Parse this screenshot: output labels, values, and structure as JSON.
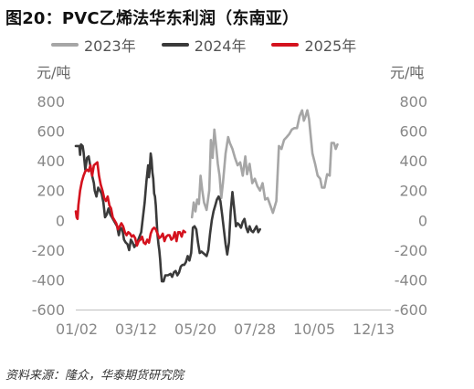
{
  "title": "图20：PVC乙烯法华东利润（东南亚）",
  "source": "资料来源：隆众，华泰期货研究院",
  "chart_data": {
    "type": "line",
    "ylabel_left": "元/吨",
    "ylabel_right": "元/吨",
    "ylim": [
      -600,
      800
    ],
    "yticks": [
      -600,
      -400,
      -200,
      0,
      200,
      400,
      600,
      800
    ],
    "x_ticks": [
      "01/02",
      "03/12",
      "05/20",
      "07/28",
      "10/05",
      "12/13"
    ],
    "grid": false,
    "legend_position": "top",
    "series": [
      {
        "name": "2023年",
        "color": "#a6a6a6",
        "points": [
          [
            136,
            20
          ],
          [
            138,
            120
          ],
          [
            140,
            60
          ],
          [
            142,
            140
          ],
          [
            144,
            110
          ],
          [
            146,
            300
          ],
          [
            148,
            200
          ],
          [
            150,
            120
          ],
          [
            153,
            70
          ],
          [
            156,
            200
          ],
          [
            158,
            540
          ],
          [
            160,
            420
          ],
          [
            162,
            610
          ],
          [
            164,
            500
          ],
          [
            166,
            380
          ],
          [
            168,
            300
          ],
          [
            170,
            150
          ],
          [
            172,
            250
          ],
          [
            175,
            450
          ],
          [
            178,
            560
          ],
          [
            180,
            520
          ],
          [
            183,
            480
          ],
          [
            186,
            420
          ],
          [
            189,
            370
          ],
          [
            192,
            390
          ],
          [
            195,
            300
          ],
          [
            198,
            430
          ],
          [
            200,
            310
          ],
          [
            203,
            380
          ],
          [
            206,
            250
          ],
          [
            209,
            280
          ],
          [
            212,
            230
          ],
          [
            215,
            200
          ],
          [
            218,
            250
          ],
          [
            221,
            140
          ],
          [
            224,
            150
          ],
          [
            227,
            100
          ],
          [
            230,
            50
          ],
          [
            234,
            130
          ],
          [
            237,
            500
          ],
          [
            240,
            480
          ],
          [
            243,
            540
          ],
          [
            246,
            560
          ],
          [
            249,
            580
          ],
          [
            252,
            610
          ],
          [
            255,
            620
          ],
          [
            258,
            620
          ],
          [
            261,
            700
          ],
          [
            264,
            740
          ],
          [
            266,
            670
          ],
          [
            268,
            700
          ],
          [
            270,
            740
          ],
          [
            272,
            680
          ],
          [
            274,
            560
          ],
          [
            276,
            450
          ],
          [
            279,
            380
          ],
          [
            282,
            300
          ],
          [
            285,
            280
          ],
          [
            287,
            220
          ],
          [
            290,
            220
          ],
          [
            293,
            310
          ],
          [
            296,
            300
          ],
          [
            298,
            520
          ],
          [
            301,
            520
          ],
          [
            303,
            480
          ],
          [
            305,
            510
          ]
        ]
      },
      {
        "name": "2024年",
        "color": "#3a3a3a",
        "points": [
          [
            1,
            500
          ],
          [
            3,
            500
          ],
          [
            5,
            500
          ],
          [
            6,
            440
          ],
          [
            7,
            510
          ],
          [
            9,
            500
          ],
          [
            10,
            460
          ],
          [
            12,
            340
          ],
          [
            14,
            420
          ],
          [
            16,
            430
          ],
          [
            18,
            360
          ],
          [
            20,
            300
          ],
          [
            22,
            250
          ],
          [
            23,
            200
          ],
          [
            25,
            160
          ],
          [
            27,
            220
          ],
          [
            29,
            200
          ],
          [
            31,
            180
          ],
          [
            33,
            120
          ],
          [
            35,
            20
          ],
          [
            37,
            40
          ],
          [
            39,
            80
          ],
          [
            41,
            40
          ],
          [
            43,
            20
          ],
          [
            45,
            0
          ],
          [
            47,
            -20
          ],
          [
            49,
            -40
          ],
          [
            51,
            -100
          ],
          [
            53,
            -50
          ],
          [
            55,
            -60
          ],
          [
            57,
            -130
          ],
          [
            59,
            -150
          ],
          [
            61,
            -160
          ],
          [
            63,
            -200
          ],
          [
            65,
            -130
          ],
          [
            67,
            -150
          ],
          [
            69,
            -180
          ],
          [
            71,
            -160
          ],
          [
            73,
            -140
          ],
          [
            75,
            -110
          ],
          [
            77,
            -80
          ],
          [
            79,
            20
          ],
          [
            81,
            120
          ],
          [
            83,
            260
          ],
          [
            85,
            370
          ],
          [
            86,
            290
          ],
          [
            87,
            350
          ],
          [
            88,
            450
          ],
          [
            89,
            410
          ],
          [
            90,
            320
          ],
          [
            91,
            280
          ],
          [
            92,
            180
          ],
          [
            93,
            160
          ],
          [
            94,
            100
          ],
          [
            95,
            -10
          ],
          [
            96,
            -100
          ],
          [
            97,
            -160
          ],
          [
            98,
            -200
          ],
          [
            99,
            -260
          ],
          [
            100,
            -350
          ],
          [
            101,
            -410
          ],
          [
            103,
            -410
          ],
          [
            105,
            -370
          ],
          [
            108,
            -370
          ],
          [
            111,
            -360
          ],
          [
            113,
            -380
          ],
          [
            115,
            -350
          ],
          [
            117,
            -340
          ],
          [
            119,
            -370
          ],
          [
            121,
            -350
          ],
          [
            123,
            -310
          ],
          [
            125,
            -300
          ],
          [
            127,
            -300
          ],
          [
            129,
            -280
          ],
          [
            131,
            -240
          ],
          [
            133,
            -270
          ],
          [
            135,
            -220
          ],
          [
            137,
            -50
          ],
          [
            139,
            -40
          ],
          [
            141,
            -60
          ],
          [
            143,
            -150
          ],
          [
            145,
            -220
          ],
          [
            147,
            -210
          ],
          [
            149,
            -220
          ],
          [
            151,
            -230
          ],
          [
            153,
            -240
          ],
          [
            155,
            -200
          ],
          [
            157,
            -90
          ],
          [
            159,
            0
          ],
          [
            161,
            60
          ],
          [
            163,
            100
          ],
          [
            165,
            140
          ],
          [
            167,
            160
          ],
          [
            169,
            130
          ],
          [
            171,
            40
          ],
          [
            173,
            -60
          ],
          [
            175,
            -160
          ],
          [
            177,
            -230
          ],
          [
            179,
            -150
          ],
          [
            181,
            60
          ],
          [
            183,
            190
          ],
          [
            185,
            80
          ],
          [
            187,
            -40
          ],
          [
            189,
            -20
          ],
          [
            191,
            -30
          ],
          [
            193,
            -50
          ],
          [
            195,
            -10
          ],
          [
            197,
            10
          ],
          [
            199,
            -50
          ],
          [
            201,
            -80
          ],
          [
            203,
            -40
          ],
          [
            205,
            -70
          ],
          [
            207,
            -80
          ],
          [
            209,
            -60
          ],
          [
            211,
            -40
          ],
          [
            213,
            -80
          ],
          [
            215,
            -60
          ]
        ]
      },
      {
        "name": "2025年",
        "color": "#d4121e",
        "points": [
          [
            1,
            60
          ],
          [
            2,
            20
          ],
          [
            3,
            10
          ],
          [
            4,
            100
          ],
          [
            6,
            200
          ],
          [
            8,
            260
          ],
          [
            10,
            300
          ],
          [
            12,
            330
          ],
          [
            14,
            340
          ],
          [
            16,
            330
          ],
          [
            18,
            370
          ],
          [
            20,
            300
          ],
          [
            22,
            370
          ],
          [
            24,
            380
          ],
          [
            26,
            390
          ],
          [
            28,
            300
          ],
          [
            30,
            240
          ],
          [
            32,
            200
          ],
          [
            34,
            150
          ],
          [
            36,
            130
          ],
          [
            38,
            160
          ],
          [
            40,
            100
          ],
          [
            42,
            80
          ],
          [
            44,
            20
          ],
          [
            46,
            0
          ],
          [
            48,
            -20
          ],
          [
            50,
            -60
          ],
          [
            52,
            -40
          ],
          [
            54,
            -20
          ],
          [
            56,
            -40
          ],
          [
            58,
            -80
          ],
          [
            60,
            -100
          ],
          [
            62,
            -80
          ],
          [
            64,
            -90
          ],
          [
            66,
            -110
          ],
          [
            68,
            -100
          ],
          [
            70,
            -120
          ],
          [
            72,
            -170
          ],
          [
            74,
            -140
          ],
          [
            76,
            -130
          ],
          [
            78,
            -110
          ],
          [
            80,
            -150
          ],
          [
            82,
            -160
          ],
          [
            84,
            -130
          ],
          [
            86,
            -150
          ],
          [
            88,
            -90
          ],
          [
            90,
            -60
          ],
          [
            92,
            -50
          ],
          [
            94,
            -60
          ],
          [
            96,
            -90
          ],
          [
            98,
            -120
          ],
          [
            100,
            -110
          ],
          [
            102,
            -90
          ],
          [
            104,
            -140
          ],
          [
            106,
            -110
          ],
          [
            108,
            -100
          ],
          [
            110,
            -100
          ],
          [
            112,
            -130
          ],
          [
            114,
            -120
          ],
          [
            116,
            -80
          ],
          [
            118,
            -140
          ],
          [
            120,
            -80
          ],
          [
            122,
            -80
          ],
          [
            124,
            -110
          ],
          [
            126,
            -70
          ],
          [
            128,
            -80
          ]
        ]
      }
    ]
  }
}
